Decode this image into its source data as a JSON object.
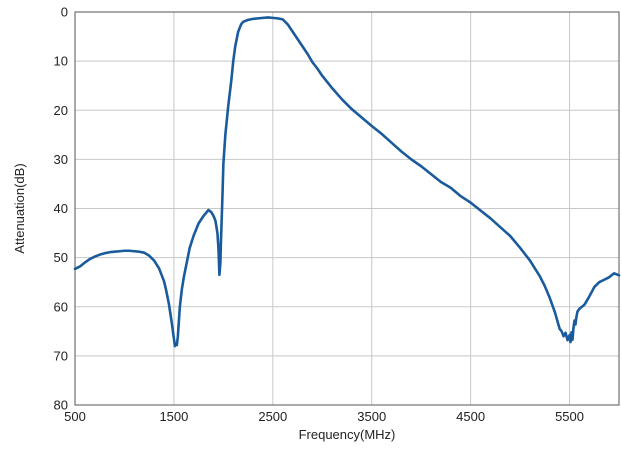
{
  "chart_data": {
    "type": "line",
    "title": "",
    "xlabel": "Frequency(MHz)",
    "ylabel": "Attenuation(dB)",
    "xlim": [
      500,
      6000
    ],
    "ylim": [
      0,
      80
    ],
    "y_inverted": true,
    "grid": true,
    "legend": "none",
    "x_ticks": [
      "500",
      "1500",
      "2500",
      "3500",
      "4500",
      "5500"
    ],
    "x_tick_values": [
      500,
      1500,
      2500,
      3500,
      4500,
      5500
    ],
    "y_ticks": [
      "0",
      "10",
      "20",
      "30",
      "40",
      "50",
      "60",
      "70",
      "80"
    ],
    "y_tick_values": [
      0,
      10,
      20,
      30,
      40,
      50,
      60,
      70,
      80
    ],
    "colors": {
      "line": "#1a5b9c",
      "grid": "#c8c8c8",
      "frame": "#555555"
    },
    "series": [
      {
        "x": [
          500,
          550,
          600,
          650,
          700,
          750,
          800,
          850,
          900,
          950,
          1000,
          1050,
          1100,
          1150,
          1200,
          1250,
          1300,
          1350,
          1400,
          1420,
          1450,
          1480,
          1500,
          1510,
          1520,
          1530,
          1540,
          1550,
          1560,
          1580,
          1600,
          1630,
          1660,
          1700,
          1750,
          1800,
          1850,
          1880,
          1900,
          1920,
          1940,
          1950,
          1960,
          1970,
          1975,
          1980,
          1990,
          2000,
          2020,
          2050,
          2080,
          2100,
          2120,
          2150,
          2180,
          2200,
          2250,
          2300,
          2350,
          2400,
          2450,
          2500,
          2550,
          2600,
          2650,
          2700,
          2750,
          2800,
          2850,
          2900,
          2950,
          3000,
          3100,
          3200,
          3300,
          3400,
          3500,
          3600,
          3700,
          3800,
          3900,
          4000,
          4100,
          4200,
          4300,
          4400,
          4500,
          4600,
          4700,
          4800,
          4900,
          5000,
          5100,
          5200,
          5250,
          5300,
          5350,
          5400,
          5420,
          5440,
          5460,
          5480,
          5500,
          5510,
          5520,
          5530,
          5540,
          5550,
          5560,
          5570,
          5580,
          5600,
          5650,
          5700,
          5750,
          5800,
          5850,
          5900,
          5950,
          6000
        ],
        "y": [
          52.3,
          51.8,
          51.0,
          50.3,
          49.8,
          49.4,
          49.1,
          48.9,
          48.8,
          48.7,
          48.6,
          48.6,
          48.7,
          48.8,
          49.0,
          49.6,
          50.6,
          52.2,
          54.8,
          56.5,
          59.5,
          63.5,
          66.5,
          68.0,
          67.5,
          67.8,
          66.0,
          63.0,
          60.0,
          56.5,
          54.0,
          51.0,
          48.0,
          45.5,
          43.0,
          41.5,
          40.3,
          40.8,
          41.5,
          42.5,
          45.0,
          48.0,
          53.5,
          51.0,
          47.0,
          44.0,
          38.0,
          31.0,
          25.0,
          19.0,
          14.0,
          10.0,
          7.0,
          4.0,
          2.5,
          2.0,
          1.6,
          1.4,
          1.3,
          1.2,
          1.1,
          1.2,
          1.3,
          1.5,
          2.5,
          4.0,
          5.5,
          7.0,
          8.5,
          10.2,
          11.5,
          13.0,
          15.5,
          17.8,
          19.8,
          21.5,
          23.2,
          24.8,
          26.6,
          28.4,
          30.0,
          31.4,
          33.0,
          34.6,
          35.8,
          37.5,
          38.8,
          40.4,
          42.0,
          43.8,
          45.6,
          48.0,
          50.6,
          53.8,
          55.8,
          58.2,
          61.0,
          64.5,
          65.0,
          66.0,
          65.3,
          66.8,
          65.8,
          67.2,
          65.2,
          66.7,
          64.2,
          62.8,
          63.6,
          62.0,
          61.0,
          60.4,
          59.6,
          57.9,
          56.0,
          55.0,
          54.5,
          54.0,
          53.2,
          53.6
        ]
      }
    ]
  }
}
